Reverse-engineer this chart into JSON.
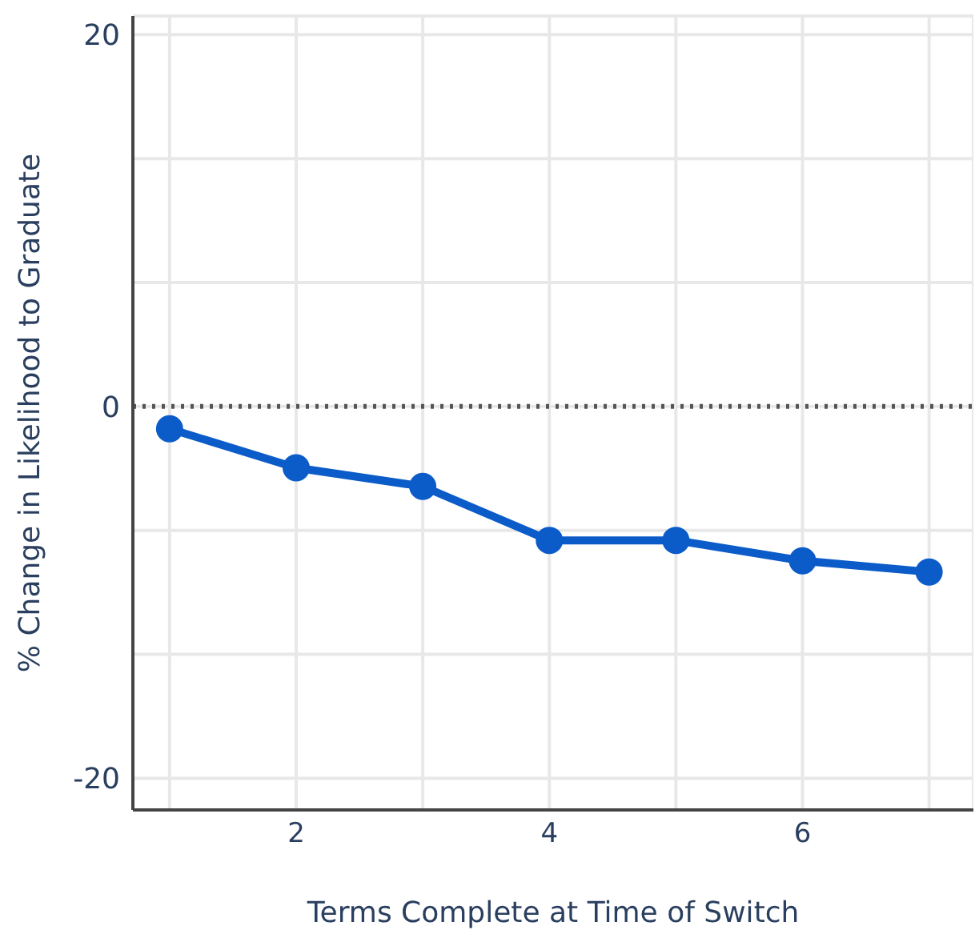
{
  "chart_data": {
    "type": "line",
    "xlabel": "Terms Complete at Time of Switch",
    "ylabel": "% Change in Likelihood to Graduate",
    "x": [
      1,
      2,
      3,
      4,
      5,
      6,
      7
    ],
    "series": [
      {
        "color": "#0b5cc9",
        "values": [
          -1.2,
          -3.3,
          -4.3,
          -7.2,
          -7.2,
          -8.3,
          -8.9
        ]
      }
    ],
    "xlim": [
      0.71,
      7.35
    ],
    "xticks": [
      {
        "value": 1,
        "label": null
      },
      2,
      {
        "value": 3,
        "label": null
      },
      4,
      {
        "value": 5,
        "label": null
      },
      6,
      {
        "value": 7,
        "label": null
      }
    ],
    "ylim": [
      -21.7,
      21
    ],
    "yticks": [
      -20,
      {
        "value": -13.33,
        "label": null
      },
      {
        "value": -6.67,
        "label": null
      },
      0,
      {
        "value": 6.67,
        "label": null
      },
      {
        "value": 13.33,
        "label": null
      },
      20
    ],
    "ref_lines": [
      {
        "axis": "y",
        "value": 0,
        "color": "#555555",
        "line_style": "dotted"
      }
    ],
    "grid": true,
    "marker": "circle",
    "line_style": "solid"
  }
}
